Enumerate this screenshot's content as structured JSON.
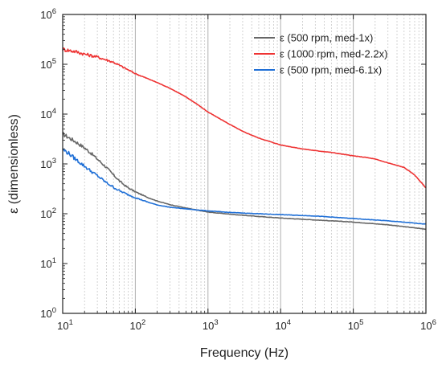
{
  "chart_data": {
    "type": "line",
    "title": "",
    "xlabel": "Frequency (Hz)",
    "ylabel": "ε (dimensionless)",
    "x_scale": "log",
    "y_scale": "log",
    "xlim": [
      10,
      1000000
    ],
    "ylim": [
      1,
      1000000
    ],
    "x_ticks": [
      {
        "base": "10",
        "exp": "1",
        "value": 10
      },
      {
        "base": "10",
        "exp": "2",
        "value": 100
      },
      {
        "base": "10",
        "exp": "3",
        "value": 1000
      },
      {
        "base": "10",
        "exp": "4",
        "value": 10000
      },
      {
        "base": "10",
        "exp": "5",
        "value": 100000
      },
      {
        "base": "10",
        "exp": "6",
        "value": 1000000
      }
    ],
    "y_ticks": [
      {
        "base": "10",
        "exp": "0",
        "value": 1
      },
      {
        "base": "10",
        "exp": "1",
        "value": 10
      },
      {
        "base": "10",
        "exp": "2",
        "value": 100
      },
      {
        "base": "10",
        "exp": "3",
        "value": 1000
      },
      {
        "base": "10",
        "exp": "4",
        "value": 10000
      },
      {
        "base": "10",
        "exp": "5",
        "value": 100000
      },
      {
        "base": "10",
        "exp": "6",
        "value": 1000000
      }
    ],
    "grid": {
      "major_x": true,
      "minor_x": true,
      "major_y": false
    },
    "legend_position": "top-right",
    "series": [
      {
        "name": "ε (500 rpm, med-1x)",
        "color": "#666666",
        "x": [
          10,
          12,
          15,
          20,
          25,
          30,
          40,
          50,
          60,
          70,
          80,
          100,
          150,
          200,
          300,
          500,
          1000,
          2000,
          5000,
          10000,
          30000,
          100000,
          300000,
          1000000
        ],
        "y": [
          4000,
          3400,
          2800,
          2100,
          1600,
          1250,
          850,
          600,
          460,
          380,
          330,
          275,
          210,
          180,
          152,
          130,
          108,
          98,
          88,
          82,
          75,
          68,
          60,
          49
        ]
      },
      {
        "name": "ε (1000 rpm, med-2.2x)",
        "color": "#ee3333",
        "x": [
          10,
          15,
          20,
          30,
          50,
          100,
          200,
          300,
          500,
          700,
          1000,
          2000,
          3000,
          5000,
          10000,
          20000,
          30000,
          50000,
          100000,
          150000,
          200000,
          300000,
          500000,
          700000,
          1000000
        ],
        "y": [
          200000,
          180000,
          160000,
          140000,
          110000,
          65000,
          43000,
          33000,
          22000,
          16000,
          11000,
          6200,
          4500,
          3300,
          2400,
          2000,
          1850,
          1700,
          1450,
          1350,
          1250,
          1050,
          850,
          600,
          330
        ]
      },
      {
        "name": "ε (500 rpm, med-6.1x)",
        "color": "#1f6fd6",
        "x": [
          10,
          12,
          15,
          20,
          25,
          30,
          40,
          50,
          60,
          80,
          100,
          150,
          200,
          300,
          500,
          1000,
          2000,
          5000,
          10000,
          30000,
          100000,
          300000,
          1000000
        ],
        "y": [
          1950,
          1650,
          1250,
          900,
          700,
          580,
          420,
          340,
          290,
          240,
          210,
          170,
          150,
          135,
          125,
          114,
          106,
          100,
          96,
          90,
          80,
          72,
          62
        ]
      }
    ]
  }
}
